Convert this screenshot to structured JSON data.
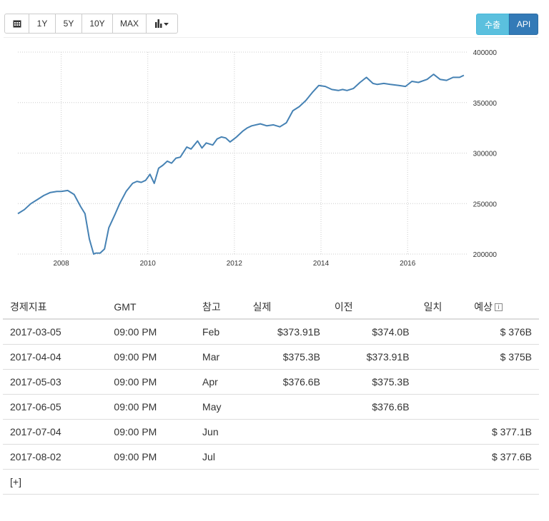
{
  "toolbar": {
    "buttons": [
      "1Y",
      "5Y",
      "10Y",
      "MAX"
    ],
    "export_label": "수출",
    "api_label": "API"
  },
  "chart_data": {
    "type": "line",
    "title": "",
    "xlabel": "",
    "ylabel": "",
    "xlim": [
      2007.0,
      2017.4
    ],
    "ylim": [
      200000,
      400000
    ],
    "x_ticks": [
      "2008",
      "2010",
      "2012",
      "2014",
      "2016"
    ],
    "x_tick_values": [
      2008,
      2010,
      2012,
      2014,
      2016
    ],
    "y_ticks": [
      "200000",
      "250000",
      "300000",
      "350000",
      "400000"
    ],
    "y_tick_values": [
      200000,
      250000,
      300000,
      350000,
      400000
    ],
    "grid": true,
    "color": "#4682b4",
    "series": [
      {
        "x": [
          2007.0,
          2007.15,
          2007.3,
          2007.45,
          2007.6,
          2007.75,
          2007.9,
          2008.0,
          2008.15,
          2008.3,
          2008.45,
          2008.55,
          2008.65,
          2008.75,
          2008.8,
          2008.9,
          2009.0,
          2009.1,
          2009.25,
          2009.35,
          2009.5,
          2009.65,
          2009.75,
          2009.85,
          2009.95,
          2010.05,
          2010.15,
          2010.25,
          2010.35,
          2010.45,
          2010.55,
          2010.65,
          2010.75,
          2010.9,
          2011.0,
          2011.15,
          2011.25,
          2011.35,
          2011.5,
          2011.6,
          2011.7,
          2011.8,
          2011.9,
          2012.05,
          2012.2,
          2012.3,
          2012.4,
          2012.6,
          2012.75,
          2012.9,
          2013.05,
          2013.2,
          2013.35,
          2013.5,
          2013.65,
          2013.8,
          2013.95,
          2014.1,
          2014.25,
          2014.4,
          2014.5,
          2014.6,
          2014.75,
          2014.9,
          2015.05,
          2015.2,
          2015.3,
          2015.45,
          2015.6,
          2015.8,
          2015.95,
          2016.1,
          2016.25,
          2016.45,
          2016.6,
          2016.75,
          2016.9,
          2017.05,
          2017.2,
          2017.3
        ],
        "y": [
          240000,
          244000,
          250000,
          254000,
          258000,
          261000,
          262000,
          262000,
          263000,
          259000,
          247000,
          240000,
          215000,
          200000,
          201000,
          201000,
          205000,
          226000,
          240000,
          250000,
          262000,
          270000,
          272000,
          271000,
          273000,
          279000,
          270000,
          285000,
          288000,
          292000,
          290000,
          295000,
          296000,
          306000,
          304000,
          312000,
          305000,
          310000,
          308000,
          314000,
          316000,
          315000,
          311000,
          316000,
          322000,
          325000,
          327000,
          329000,
          327000,
          328000,
          326000,
          330000,
          342000,
          346000,
          352000,
          360000,
          367000,
          366000,
          363000,
          362000,
          363000,
          362000,
          364000,
          370000,
          375000,
          369000,
          368000,
          369000,
          368000,
          367000,
          366000,
          371000,
          370000,
          373000,
          378000,
          373000,
          372000,
          375000,
          375000,
          377000
        ]
      }
    ]
  },
  "table": {
    "headers": [
      "경제지표",
      "GMT",
      "참고",
      "실제",
      "이전",
      "일치",
      "예상"
    ],
    "rows": [
      {
        "date": "2017-03-05",
        "gmt": "09:00 PM",
        "ref": "Feb",
        "actual": "$373.91B",
        "previous": "$374.0B",
        "consensus": "",
        "forecast": "$ 376B"
      },
      {
        "date": "2017-04-04",
        "gmt": "09:00 PM",
        "ref": "Mar",
        "actual": "$375.3B",
        "previous": "$373.91B",
        "consensus": "",
        "forecast": "$ 375B"
      },
      {
        "date": "2017-05-03",
        "gmt": "09:00 PM",
        "ref": "Apr",
        "actual": "$376.6B",
        "previous": "$375.3B",
        "consensus": "",
        "forecast": ""
      },
      {
        "date": "2017-06-05",
        "gmt": "09:00 PM",
        "ref": "May",
        "actual": "",
        "previous": "$376.6B",
        "consensus": "",
        "forecast": ""
      },
      {
        "date": "2017-07-04",
        "gmt": "09:00 PM",
        "ref": "Jun",
        "actual": "",
        "previous": "",
        "consensus": "",
        "forecast": "$ 377.1B"
      },
      {
        "date": "2017-08-02",
        "gmt": "09:00 PM",
        "ref": "Jul",
        "actual": "",
        "previous": "",
        "consensus": "",
        "forecast": "$ 377.6B"
      }
    ],
    "more_label": "[+]"
  }
}
